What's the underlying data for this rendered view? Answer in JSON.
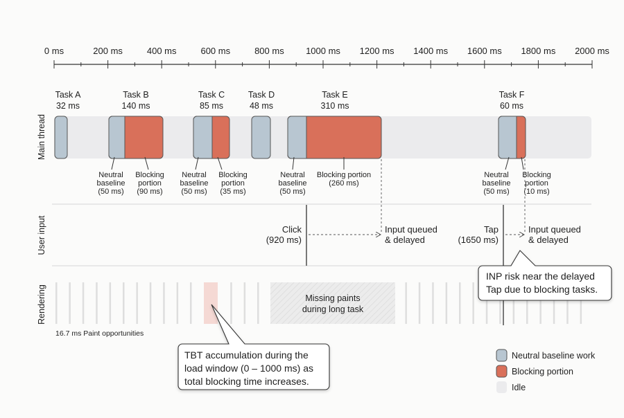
{
  "axis": {
    "ticks": [
      0,
      200,
      400,
      600,
      800,
      1000,
      1200,
      1400,
      1600,
      1800,
      2000
    ],
    "unit": "ms",
    "max": 2000
  },
  "colors": {
    "neutral": "#b8c6d1",
    "blocking": "#d9705a",
    "idle": "#ebebed",
    "tbt_highlight": "#f5d9d4"
  },
  "lanes": {
    "main": "Main thread",
    "input": "User input",
    "render": "Rendering"
  },
  "tasks": [
    {
      "name": "Task A",
      "duration": "32 ms"
    },
    {
      "name": "Task B",
      "duration": "140 ms"
    },
    {
      "name": "Task C",
      "duration": "85 ms"
    },
    {
      "name": "Task D",
      "duration": "48 ms"
    },
    {
      "name": "Task E",
      "duration": "310 ms"
    },
    {
      "name": "Task F",
      "duration": "60 ms"
    }
  ],
  "annotations": {
    "b_neutral": [
      "Neutral",
      "baseline",
      "(50 ms)"
    ],
    "b_block": [
      "Blocking",
      "portion",
      "(90 ms)"
    ],
    "c_neutral": [
      "Neutral",
      "baseline",
      "(50 ms)"
    ],
    "c_block": [
      "Blocking",
      "portion",
      "(35 ms)"
    ],
    "e_neutral": [
      "Neutral",
      "baseline",
      "(50 ms)"
    ],
    "e_block": [
      "Blocking portion",
      "(260 ms)"
    ],
    "f_neutral": [
      "Neutral",
      "baseline",
      "(50 ms)"
    ],
    "f_block": [
      "Blocking",
      "portion",
      "(10 ms)"
    ]
  },
  "inputs": {
    "click": [
      "Click",
      "(920 ms)"
    ],
    "tap": [
      "Tap",
      "(1650 ms)"
    ],
    "queued": [
      "Input queued",
      "& delayed"
    ]
  },
  "rendering": {
    "paint_label": "16.7 ms Paint opportunities",
    "missing": [
      "Missing paints",
      "during long task"
    ]
  },
  "callouts": {
    "inp": [
      "INP risk near the delayed",
      "Tap due to blocking tasks."
    ],
    "tbt": [
      "TBT accumulation during the",
      "load window (0 – 1000 ms) as",
      "total blocking time increases."
    ]
  },
  "legend": [
    {
      "label": "Neutral baseline work"
    },
    {
      "label": "Blocking portion"
    },
    {
      "label": "Idle"
    }
  ]
}
